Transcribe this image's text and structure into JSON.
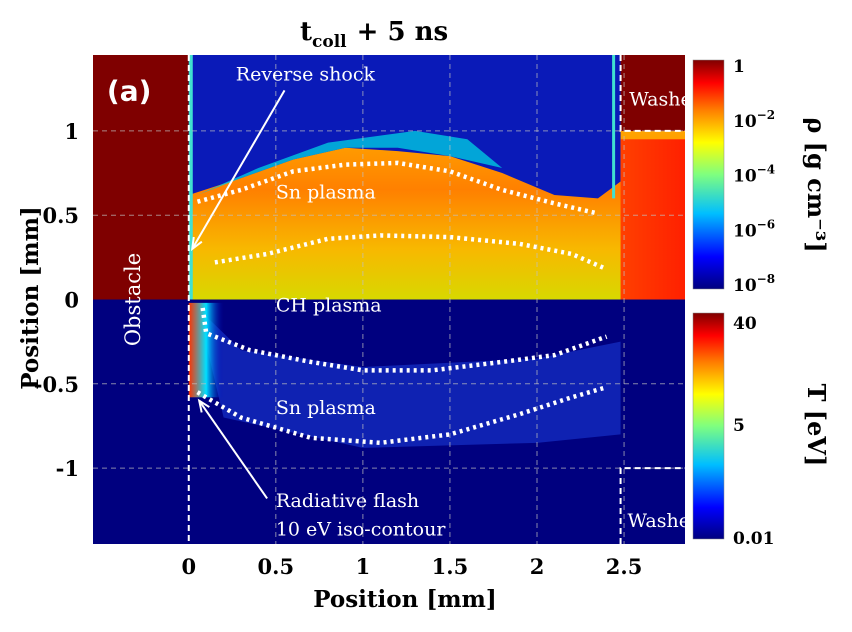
{
  "chart_data": {
    "type": "heatmap",
    "title_main": "t",
    "title_sub": "coll",
    "title_rest": "+ 5 ns",
    "panel_label": "(a)",
    "xlabel": "Position [mm]",
    "ylabel": "Position [mm]",
    "xlim": [
      -0.55,
      2.85
    ],
    "ylim": [
      -1.45,
      1.45
    ],
    "x_ticks": [
      {
        "value": 0,
        "label": "0"
      },
      {
        "value": 0.5,
        "label": "0.5"
      },
      {
        "value": 1,
        "label": "1"
      },
      {
        "value": 1.5,
        "label": "1.5"
      },
      {
        "value": 2,
        "label": "2"
      },
      {
        "value": 2.5,
        "label": "2.5"
      }
    ],
    "y_ticks": [
      {
        "value": 1,
        "label": "1"
      },
      {
        "value": 0.5,
        "label": "0.5"
      },
      {
        "value": 0,
        "label": "0"
      },
      {
        "value": -0.5,
        "label": "-0.5"
      },
      {
        "value": -1,
        "label": "-1"
      }
    ],
    "grid": true,
    "top_half": {
      "quantity": "density",
      "colorbar_label": "ρ [g cm⁻³]"
    },
    "bottom_half": {
      "quantity": "temperature",
      "colorbar_label": "T [eV]"
    },
    "density_colorbar": {
      "scale": "log",
      "ticks": [
        {
          "base": "1",
          "exp": ""
        },
        {
          "base": "10",
          "exp": "−2"
        },
        {
          "base": "10",
          "exp": "−4"
        },
        {
          "base": "10",
          "exp": "−6"
        },
        {
          "base": "10",
          "exp": "−8"
        }
      ]
    },
    "temperature_colorbar": {
      "ticks": [
        "40",
        "5",
        "0.01"
      ]
    },
    "colormap": [
      "#00007f",
      "#0000ff",
      "#00bfff",
      "#7fff7f",
      "#ffff00",
      "#ff7f00",
      "#ff0000",
      "#7f0000"
    ],
    "regions": {
      "obstacle": "Obstacle",
      "washer_top": "Washer",
      "washer_bottom": "Washer"
    },
    "annotations": {
      "reverse_shock": "Reverse shock",
      "sn_plasma_top": "Sn plasma",
      "ch_plasma": "CH plasma",
      "sn_plasma_bottom": "Sn plasma",
      "radiative_flash": "Radiative flash",
      "iso_contour": "10 eV iso-contour"
    },
    "contours": {
      "top_outer": [
        [
          0.05,
          0.58
        ],
        [
          0.3,
          0.65
        ],
        [
          0.6,
          0.76
        ],
        [
          0.9,
          0.8
        ],
        [
          1.2,
          0.81
        ],
        [
          1.5,
          0.76
        ],
        [
          1.8,
          0.65
        ],
        [
          2.1,
          0.57
        ],
        [
          2.35,
          0.51
        ]
      ],
      "top_inner": [
        [
          0.15,
          0.22
        ],
        [
          0.45,
          0.27
        ],
        [
          0.8,
          0.36
        ],
        [
          1.1,
          0.38
        ],
        [
          1.5,
          0.37
        ],
        [
          1.9,
          0.33
        ],
        [
          2.2,
          0.27
        ],
        [
          2.4,
          0.18
        ]
      ],
      "bottom_upper": [
        [
          0.08,
          -0.05
        ],
        [
          0.1,
          -0.2
        ],
        [
          0.35,
          -0.3
        ],
        [
          0.7,
          -0.37
        ],
        [
          1.0,
          -0.42
        ],
        [
          1.4,
          -0.42
        ],
        [
          1.8,
          -0.37
        ],
        [
          2.1,
          -0.33
        ],
        [
          2.4,
          -0.22
        ]
      ],
      "bottom_lower": [
        [
          0.05,
          -0.55
        ],
        [
          0.3,
          -0.7
        ],
        [
          0.7,
          -0.82
        ],
        [
          1.1,
          -0.85
        ],
        [
          1.5,
          -0.8
        ],
        [
          1.9,
          -0.68
        ],
        [
          2.2,
          -0.58
        ],
        [
          2.4,
          -0.52
        ]
      ]
    }
  }
}
